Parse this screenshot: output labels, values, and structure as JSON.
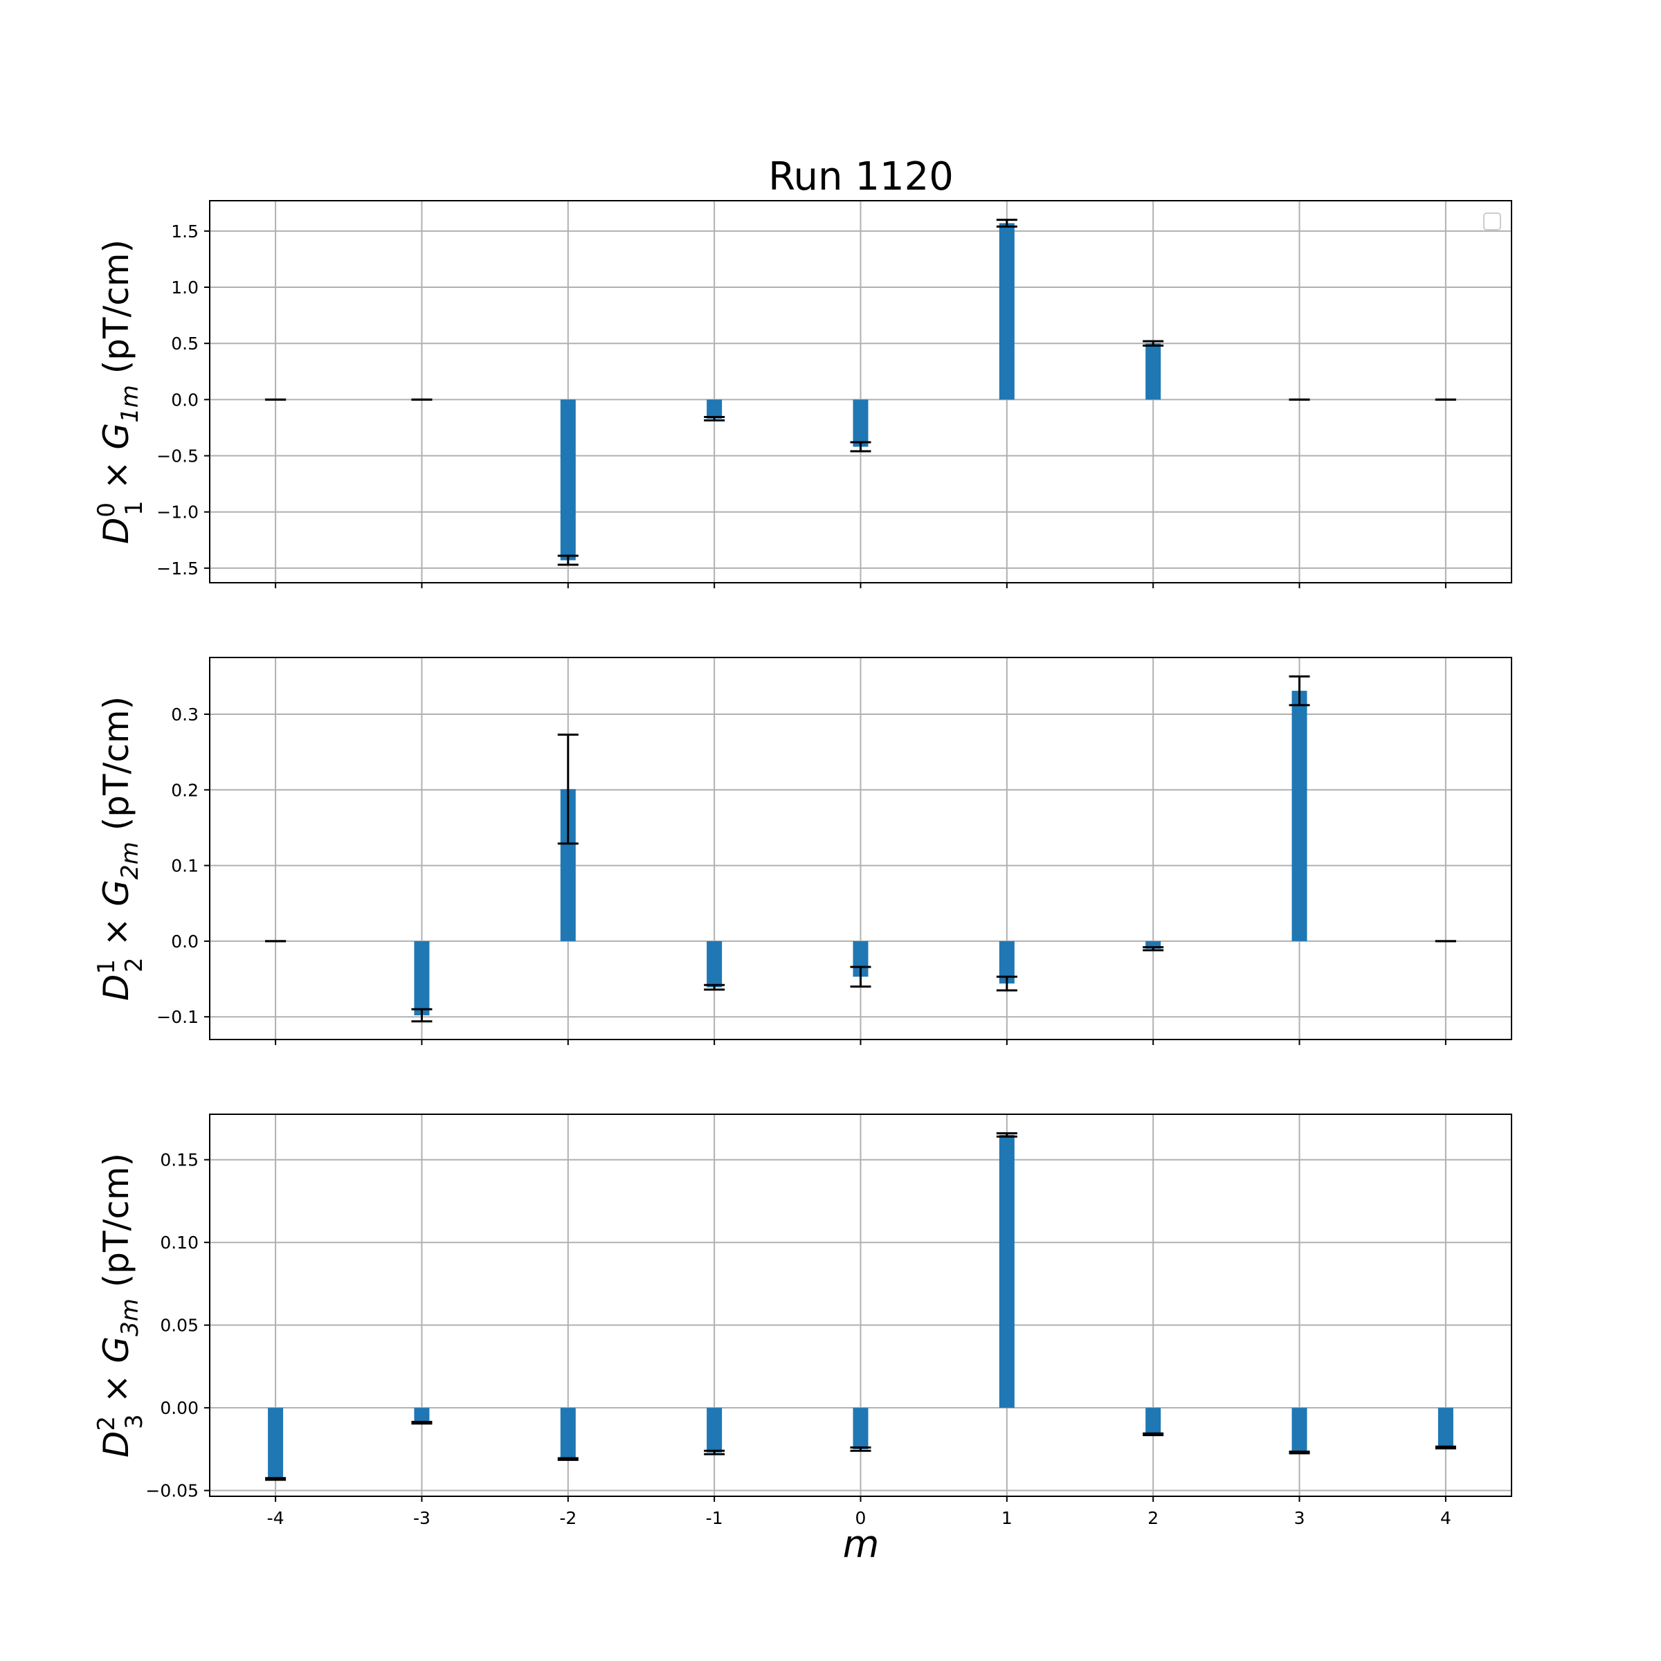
{
  "chart_data": {
    "type": "bar",
    "title": "Run 1120",
    "xlabel": "m",
    "categories": [
      "-4",
      "-3",
      "-2",
      "-1",
      "0",
      "1",
      "2",
      "3",
      "4"
    ],
    "x": [
      -4,
      -3,
      -2,
      -1,
      0,
      1,
      2,
      3,
      4
    ],
    "xlim": [
      -4.45,
      4.45
    ],
    "grid": true,
    "legend": {
      "placement": "top-right",
      "entries": []
    },
    "panels": [
      {
        "ylabel": {
          "D": "D",
          "sup": "0",
          "sub": "1",
          "times": " × ",
          "G": "G",
          "gsub": "1m",
          "unit": " (pT/cm)"
        },
        "ylim": [
          -1.63,
          1.77
        ],
        "yticks": [
          -1.5,
          -1.0,
          -0.5,
          0.0,
          0.5,
          1.0,
          1.5
        ],
        "ytick_labels": [
          "−1.5",
          "−1.0",
          "−0.5",
          "0.0",
          "0.5",
          "1.0",
          "1.5"
        ],
        "values": [
          0.0,
          0.0,
          -1.43,
          -0.17,
          -0.42,
          1.57,
          0.5,
          0.0,
          0.0
        ],
        "errors": [
          0.0,
          0.0,
          0.04,
          0.015,
          0.04,
          0.03,
          0.02,
          0.0,
          0.0
        ]
      },
      {
        "ylabel": {
          "D": "D",
          "sup": "1",
          "sub": "2",
          "times": " × ",
          "G": "G",
          "gsub": "2m",
          "unit": " (pT/cm)"
        },
        "ylim": [
          -0.13,
          0.375
        ],
        "yticks": [
          -0.1,
          0.0,
          0.1,
          0.2,
          0.3
        ],
        "ytick_labels": [
          "−0.1",
          "0.0",
          "0.1",
          "0.2",
          "0.3"
        ],
        "values": [
          0.0,
          -0.098,
          0.201,
          -0.061,
          -0.047,
          -0.056,
          -0.01,
          0.331,
          0.0
        ],
        "errors": [
          0.0,
          0.008,
          0.072,
          0.003,
          0.013,
          0.009,
          0.002,
          0.019,
          0.0
        ]
      },
      {
        "ylabel": {
          "D": "D",
          "sup": "2",
          "sub": "3",
          "times": " × ",
          "G": "G",
          "gsub": "3m",
          "unit": " (pT/cm)"
        },
        "ylim": [
          -0.0535,
          0.1775
        ],
        "yticks": [
          -0.05,
          0.0,
          0.05,
          0.1,
          0.15
        ],
        "ytick_labels": [
          "−0.05",
          "0.00",
          "0.05",
          "0.10",
          "0.15"
        ],
        "values": [
          -0.043,
          -0.009,
          -0.031,
          -0.027,
          -0.025,
          0.165,
          -0.016,
          -0.027,
          -0.024
        ],
        "errors": [
          0.0005,
          0.0005,
          0.0005,
          0.001,
          0.001,
          0.001,
          0.0005,
          0.0005,
          0.0005
        ]
      }
    ]
  }
}
